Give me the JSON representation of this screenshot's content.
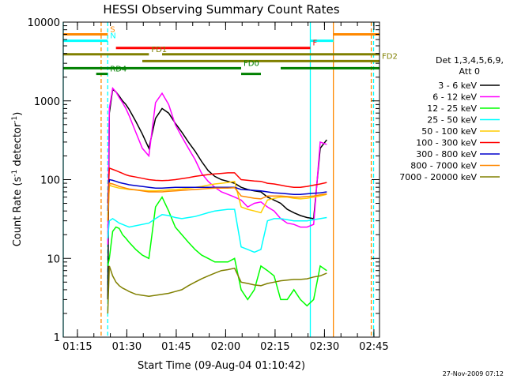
{
  "chart_data": {
    "type": "line",
    "title": "HESSI Observing Summary Count Rates",
    "xlabel": "Start Time (09-Aug-04 01:10:42)",
    "ylabel": "Count Rate (s⁻¹ detector⁻¹)",
    "ylabel_text": "Count Rate (s",
    "ylabel_sup1": "-1",
    "ylabel_mid": " detector",
    "ylabel_sup2": "-1",
    "ylabel_end": ")",
    "y_scale": "log",
    "ylim": [
      1,
      10000
    ],
    "xlim_minutes": [
      0,
      96
    ],
    "x_ticks": [
      {
        "label": "01:15",
        "min": 4.3
      },
      {
        "label": "01:30",
        "min": 19.3
      },
      {
        "label": "01:45",
        "min": 34.3
      },
      {
        "label": "02:00",
        "min": 49.3
      },
      {
        "label": "02:15",
        "min": 64.3
      },
      {
        "label": "02:30",
        "min": 79.3
      },
      {
        "label": "02:45",
        "min": 94.3
      }
    ],
    "y_ticks": [
      {
        "label": "1",
        "value": 1
      },
      {
        "label": "10",
        "value": 10
      },
      {
        "label": "100",
        "value": 100
      },
      {
        "label": "1000",
        "value": 1000
      },
      {
        "label": "10000",
        "value": 10000
      }
    ],
    "legend_header": [
      "Det 1,3,4,5,6,9,",
      "Att 0"
    ],
    "legend_placement": "right",
    "series": [
      {
        "name": "3 - 6 keV",
        "color": "#000000",
        "x": [
          13.5,
          14,
          15,
          16,
          17,
          18,
          19,
          20,
          22,
          24,
          26,
          28,
          30,
          32,
          34,
          36,
          38,
          40,
          42,
          44,
          46,
          48,
          50,
          52,
          54,
          56,
          58,
          60,
          62,
          64,
          66,
          68,
          70,
          72,
          74,
          76,
          78,
          80
        ],
        "y": [
          3,
          700,
          1400,
          1300,
          1150,
          1000,
          900,
          780,
          550,
          380,
          250,
          600,
          800,
          700,
          520,
          400,
          300,
          230,
          170,
          130,
          110,
          100,
          95,
          90,
          80,
          75,
          72,
          70,
          60,
          55,
          50,
          42,
          38,
          35,
          33,
          32,
          250,
          320
        ]
      },
      {
        "name": "6 - 12 keV",
        "color": "#ff00ff",
        "x": [
          13.5,
          14,
          15,
          16,
          17,
          18,
          19,
          20,
          22,
          24,
          26,
          28,
          30,
          32,
          34,
          36,
          38,
          40,
          42,
          44,
          46,
          48,
          50,
          52,
          54,
          56,
          58,
          60,
          62,
          64,
          66,
          68,
          70,
          72,
          74,
          76,
          78,
          80
        ],
        "y": [
          15,
          800,
          1450,
          1300,
          1100,
          950,
          800,
          650,
          400,
          250,
          200,
          950,
          1250,
          900,
          500,
          350,
          250,
          180,
          120,
          95,
          80,
          70,
          65,
          60,
          55,
          45,
          50,
          52,
          45,
          40,
          32,
          28,
          27,
          25,
          25,
          27,
          300,
          280
        ]
      },
      {
        "name": "12 - 25 keV",
        "color": "#00ff00",
        "x": [
          13.5,
          14,
          15,
          16,
          17,
          18,
          19,
          20,
          22,
          24,
          26,
          28,
          30,
          32,
          34,
          36,
          38,
          40,
          42,
          44,
          46,
          48,
          50,
          52,
          54,
          56,
          58,
          60,
          62,
          64,
          66,
          68,
          70,
          72,
          74,
          76,
          78,
          80
        ],
        "y": [
          8,
          10,
          22,
          25,
          24,
          20,
          18,
          16,
          13,
          11,
          10,
          45,
          60,
          40,
          25,
          20,
          16,
          13,
          11,
          10,
          9,
          9,
          9,
          10,
          4,
          3,
          4,
          8,
          7,
          6,
          3,
          3,
          4,
          3,
          2.5,
          3,
          8,
          7
        ]
      },
      {
        "name": "25 - 50 keV",
        "color": "#00ffff",
        "x": [
          13.5,
          14,
          15,
          16,
          17,
          18,
          19,
          20,
          22,
          24,
          26,
          28,
          30,
          32,
          34,
          36,
          38,
          40,
          42,
          44,
          46,
          48,
          50,
          52,
          54,
          56,
          58,
          60,
          62,
          64,
          66,
          68,
          70,
          72,
          74,
          76,
          78,
          80
        ],
        "y": [
          18,
          30,
          32,
          30,
          28,
          27,
          26,
          25,
          26,
          27,
          28,
          32,
          36,
          35,
          33,
          32,
          33,
          34,
          36,
          38,
          40,
          41,
          42,
          42,
          14,
          13,
          12,
          13,
          30,
          32,
          32,
          31,
          30,
          30,
          30,
          31,
          32,
          33
        ]
      },
      {
        "name": "50 - 100 keV",
        "color": "#ffcc00",
        "x": [
          13.5,
          14,
          15,
          16,
          17,
          18,
          19,
          20,
          22,
          24,
          26,
          28,
          30,
          32,
          34,
          36,
          38,
          40,
          42,
          44,
          46,
          48,
          50,
          52,
          54,
          56,
          58,
          60,
          62,
          64,
          66,
          68,
          70,
          72,
          74,
          76,
          78,
          80
        ],
        "y": [
          30,
          85,
          82,
          80,
          78,
          77,
          76,
          75,
          74,
          73,
          72,
          72,
          73,
          74,
          75,
          76,
          78,
          80,
          82,
          85,
          88,
          90,
          92,
          95,
          45,
          42,
          40,
          38,
          55,
          58,
          60,
          60,
          58,
          57,
          58,
          60,
          62,
          65
        ]
      },
      {
        "name": "100 - 300 keV",
        "color": "#ff0000",
        "x": [
          13.5,
          14,
          15,
          16,
          17,
          18,
          19,
          20,
          22,
          24,
          26,
          28,
          30,
          32,
          34,
          36,
          38,
          40,
          42,
          44,
          46,
          48,
          50,
          52,
          54,
          56,
          58,
          60,
          62,
          64,
          66,
          68,
          70,
          72,
          74,
          76,
          78,
          80
        ],
        "y": [
          50,
          140,
          135,
          130,
          125,
          120,
          115,
          112,
          108,
          104,
          100,
          98,
          97,
          98,
          100,
          103,
          106,
          110,
          113,
          116,
          118,
          120,
          122,
          122,
          100,
          98,
          96,
          95,
          90,
          88,
          85,
          82,
          80,
          80,
          82,
          85,
          88,
          92
        ]
      },
      {
        "name": "300 - 800 keV",
        "color": "#0000cc",
        "x": [
          13.5,
          14,
          15,
          16,
          17,
          18,
          19,
          20,
          22,
          24,
          26,
          28,
          30,
          32,
          34,
          36,
          38,
          40,
          42,
          44,
          46,
          48,
          50,
          52,
          54,
          56,
          58,
          60,
          62,
          64,
          66,
          68,
          70,
          72,
          74,
          76,
          78,
          80
        ],
        "y": [
          40,
          100,
          98,
          95,
          92,
          90,
          88,
          86,
          84,
          82,
          80,
          78,
          78,
          79,
          80,
          80,
          80,
          80,
          80,
          80,
          80,
          80,
          80,
          80,
          75,
          74,
          73,
          72,
          70,
          68,
          67,
          66,
          65,
          65,
          66,
          67,
          68,
          70
        ]
      },
      {
        "name": "800 - 7000 keV",
        "color": "#ff8800",
        "x": [
          13.5,
          14,
          15,
          16,
          17,
          18,
          19,
          20,
          22,
          24,
          26,
          28,
          30,
          32,
          34,
          36,
          38,
          40,
          42,
          44,
          46,
          48,
          50,
          52,
          54,
          56,
          58,
          60,
          62,
          64,
          66,
          68,
          70,
          72,
          74,
          76,
          78,
          80
        ],
        "y": [
          30,
          90,
          88,
          85,
          82,
          80,
          78,
          76,
          74,
          72,
          70,
          70,
          70,
          71,
          72,
          73,
          74,
          75,
          76,
          77,
          78,
          78,
          78,
          79,
          62,
          60,
          58,
          57,
          62,
          62,
          62,
          61,
          60,
          60,
          61,
          62,
          64,
          66
        ]
      },
      {
        "name": "7000 - 20000 keV",
        "color": "#808000",
        "x": [
          13.5,
          14,
          15,
          16,
          17,
          18,
          19,
          20,
          22,
          24,
          26,
          28,
          30,
          32,
          34,
          36,
          38,
          40,
          42,
          44,
          46,
          48,
          50,
          52,
          54,
          56,
          58,
          60,
          62,
          64,
          66,
          68,
          70,
          72,
          74,
          76,
          78,
          80
        ],
        "y": [
          2,
          8,
          6,
          5,
          4.5,
          4.2,
          4,
          3.8,
          3.5,
          3.4,
          3.3,
          3.4,
          3.5,
          3.6,
          3.8,
          4,
          4.5,
          5,
          5.5,
          6,
          6.5,
          7,
          7.2,
          7.5,
          5,
          4.8,
          4.6,
          4.5,
          4.8,
          5,
          5.2,
          5.3,
          5.4,
          5.4,
          5.5,
          5.8,
          6,
          6.5
        ]
      }
    ],
    "state_bars": [
      {
        "label": "S",
        "color": "#ff8800",
        "y": 7000,
        "segments": [
          [
            0,
            13.5
          ],
          [
            82,
            96
          ]
        ]
      },
      {
        "label": "N",
        "color": "#00ffff",
        "y": 5800,
        "segments": [
          [
            0,
            13.5
          ],
          [
            75,
            82
          ]
        ]
      },
      {
        "label": "F",
        "color": "#ff0000",
        "y": 4700,
        "segments": [
          [
            16,
            75
          ]
        ]
      },
      {
        "label": "FD1",
        "color": "#808000",
        "y": 3900,
        "segments": [
          [
            0,
            26
          ],
          [
            30,
            96
          ]
        ]
      },
      {
        "label": "FD2",
        "color": "#808000",
        "y": 3200,
        "segments": [
          [
            24,
            96
          ]
        ]
      },
      {
        "label": "FD0",
        "color": "#008000",
        "y": 2600,
        "segments": [
          [
            0,
            54
          ],
          [
            66,
            96
          ]
        ]
      },
      {
        "label": "RD4",
        "color": "#008000",
        "y": 2200,
        "segments": [
          [
            10,
            13.5
          ],
          [
            54,
            60
          ]
        ]
      }
    ],
    "vertical_markers": [
      {
        "color": "#00ffff",
        "style": "solid",
        "min": 0
      },
      {
        "color": "#ff8800",
        "style": "dashed",
        "min": 11.5
      },
      {
        "color": "#00ffff",
        "style": "dashed",
        "min": 13.5
      },
      {
        "color": "#00ffff",
        "style": "solid",
        "min": 75
      },
      {
        "color": "#ff8800",
        "style": "solid",
        "min": 82
      },
      {
        "color": "#ff8800",
        "style": "dashed",
        "min": 93.5
      },
      {
        "color": "#00ffff",
        "style": "dashed",
        "min": 94.2
      }
    ]
  },
  "footer_timestamp": "27-Nov-2009 07:12"
}
